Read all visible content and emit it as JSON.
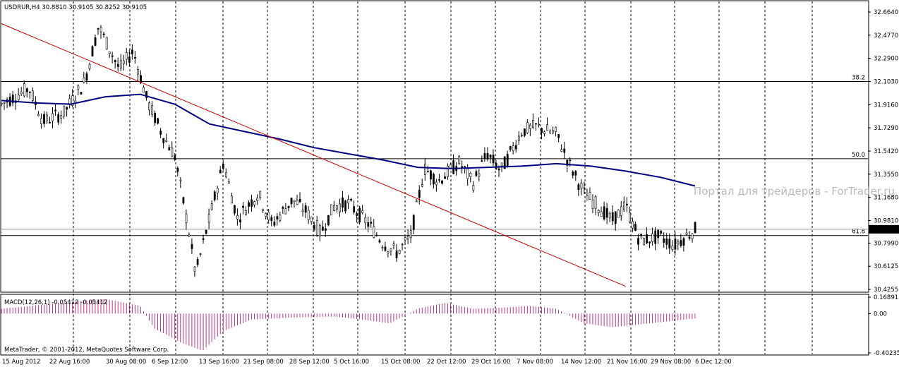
{
  "chart_data": {
    "type": "candlestick",
    "symbol_header": "USDRUR,H4  30.8810 30.9105 30.8252 30.9105",
    "price_axis": {
      "min": 30.4255,
      "max": 32.664,
      "ticks": [
        "32.6640",
        "32.4770",
        "32.2900",
        "32.1030",
        "31.9160",
        "31.7290",
        "31.5420",
        "31.3550",
        "31.1680",
        "30.9810",
        "30.7990",
        "30.6125",
        "30.4255"
      ],
      "current_price": "30.9105"
    },
    "time_axis": {
      "labels": [
        "15 Aug 2012",
        "22 Aug 16:00",
        "30 Aug 08:00",
        "6 Sep 12:00",
        "13 Sep 16:00",
        "21 Sep 08:00",
        "28 Sep 12:00",
        "5 Oct 16:00",
        "15 Oct 08:00",
        "22 Oct 12:00",
        "29 Oct 16:00",
        "7 Nov 08:00",
        "14 Nov 12:00",
        "21 Nov 16:00",
        "29 Nov 08:00",
        "6 Dec 12:00"
      ]
    },
    "fibonacci_levels": [
      {
        "label": "38.2",
        "price": 32.103
      },
      {
        "label": "50.0",
        "price": 31.48
      },
      {
        "label": "61.8",
        "price": 30.86
      }
    ],
    "moving_average_approx": [
      [
        0,
        31.95
      ],
      [
        0.05,
        31.93
      ],
      [
        0.1,
        31.92
      ],
      [
        0.15,
        31.98
      ],
      [
        0.2,
        32.0
      ],
      [
        0.25,
        31.92
      ],
      [
        0.3,
        31.76
      ],
      [
        0.35,
        31.7
      ],
      [
        0.4,
        31.64
      ],
      [
        0.45,
        31.57
      ],
      [
        0.5,
        31.52
      ],
      [
        0.55,
        31.47
      ],
      [
        0.6,
        31.41
      ],
      [
        0.65,
        31.4
      ],
      [
        0.7,
        31.41
      ],
      [
        0.75,
        31.42
      ],
      [
        0.8,
        31.44
      ],
      [
        0.85,
        31.42
      ],
      [
        0.9,
        31.38
      ],
      [
        0.95,
        31.33
      ],
      [
        1.0,
        31.26
      ]
    ],
    "trendline": {
      "from": [
        0,
        32.57
      ],
      "to": [
        0.9,
        30.45
      ]
    },
    "macd": {
      "label": "MACD(12,26,1) -0.05412 -0.05412",
      "axis_ticks": [
        "0.16891",
        "0.00",
        "-0.40235"
      ],
      "range": [
        -0.40235,
        0.16891
      ]
    },
    "watermark": "Портал для трейдеров - ForTrader.ru",
    "copyright": "MetaTrader, © 2001-2012, MetaQuotes Software Corp.",
    "colors": {
      "background": "#ffffff",
      "candles": "#000000",
      "moving_average": "#000080",
      "trendline": "#cc0000",
      "fibo_text": "#000080",
      "macd_bars": "#b00060",
      "price_badge_bg": "#000000",
      "watermark": "#bbbbbb"
    }
  }
}
